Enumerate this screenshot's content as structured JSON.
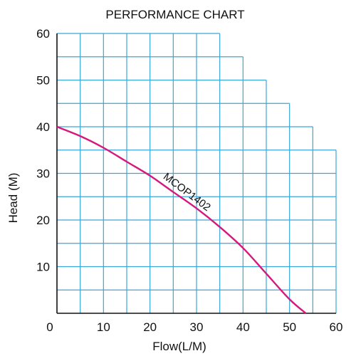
{
  "chart_data": {
    "type": "line",
    "title": "PERFORMANCE CHART",
    "xlabel": "Flow(L/M)",
    "ylabel": "Head (M)",
    "xlim": [
      0,
      60
    ],
    "ylim": [
      0,
      60
    ],
    "x_ticks": [
      0,
      10,
      20,
      30,
      40,
      50,
      60
    ],
    "y_ticks": [
      10,
      20,
      30,
      40,
      50,
      60
    ],
    "grid": true,
    "grid_color": "#3aa6d8",
    "grid_envelope": [
      {
        "x": [
          0,
          35
        ],
        "y_top": 60
      },
      {
        "x": [
          35,
          40
        ],
        "y_top": 55
      },
      {
        "x": [
          40,
          45
        ],
        "y_top": 50
      },
      {
        "x": [
          45,
          50
        ],
        "y_top": 45
      },
      {
        "x": [
          50,
          55
        ],
        "y_top": 40
      },
      {
        "x": [
          55,
          60
        ],
        "y_top": 35
      }
    ],
    "series": [
      {
        "name": "MCOP1402",
        "color": "#d6187e",
        "x": [
          0,
          5,
          10,
          15,
          20,
          25,
          30,
          35,
          40,
          45,
          50,
          53.5
        ],
        "y": [
          40,
          38,
          35.5,
          32.5,
          29.5,
          26,
          22.5,
          18.5,
          14,
          8.5,
          3,
          0
        ]
      }
    ]
  }
}
